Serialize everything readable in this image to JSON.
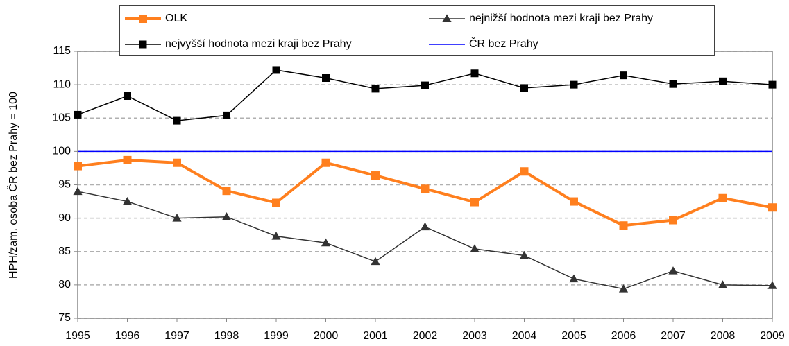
{
  "chart_data": {
    "type": "line",
    "ylabel": "HPH/zam. osoba ČR bez Prahy = 100",
    "categories": [
      "1995",
      "1996",
      "1997",
      "1998",
      "1999",
      "2000",
      "2001",
      "2002",
      "2003",
      "2004",
      "2005",
      "2006",
      "2007",
      "2008",
      "2009"
    ],
    "series": [
      {
        "name": "OLK",
        "color": "#ff7f1e",
        "marker": "square",
        "values": [
          97.8,
          98.7,
          98.3,
          94.1,
          92.3,
          98.3,
          96.4,
          94.4,
          92.4,
          97.0,
          92.5,
          88.9,
          89.7,
          93.0,
          91.6
        ]
      },
      {
        "name": "nejnižší hodnota mezi kraji bez Prahy",
        "color": "#333333",
        "marker": "triangle",
        "values": [
          94.0,
          92.5,
          90.0,
          90.2,
          87.3,
          86.3,
          83.5,
          88.7,
          85.4,
          84.4,
          80.9,
          79.4,
          82.1,
          80.0,
          79.9
        ]
      },
      {
        "name": "nejvyšší hodnota mezi kraji bez Prahy",
        "color": "#000000",
        "marker": "square",
        "values": [
          105.5,
          108.3,
          104.6,
          105.4,
          112.2,
          111.0,
          109.4,
          109.9,
          111.7,
          109.5,
          110.0,
          111.4,
          110.1,
          110.5,
          110.0
        ]
      },
      {
        "name": "ČR bez Prahy",
        "color": "#0000ff",
        "marker": "none",
        "values": [
          100,
          100,
          100,
          100,
          100,
          100,
          100,
          100,
          100,
          100,
          100,
          100,
          100,
          100,
          100
        ]
      }
    ],
    "ylim": [
      75,
      115
    ],
    "yticks": [
      75,
      80,
      85,
      90,
      95,
      100,
      105,
      110,
      115
    ],
    "grid": true,
    "legend": "top"
  }
}
